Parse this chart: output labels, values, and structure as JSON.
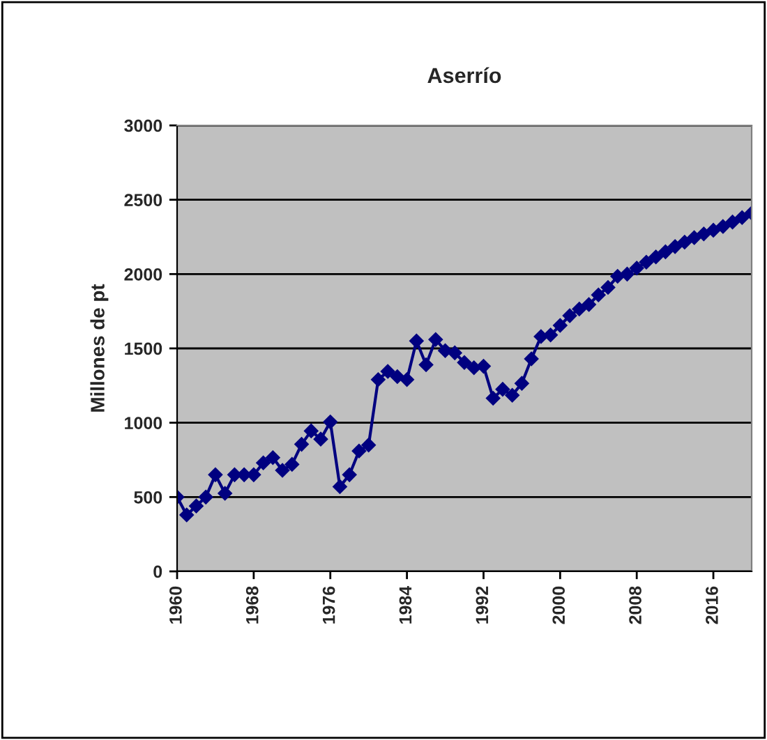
{
  "chart_data": {
    "type": "line",
    "title": "Aserrío",
    "ylabel": "Millones de pt",
    "x": [
      1960,
      1961,
      1962,
      1963,
      1964,
      1965,
      1966,
      1967,
      1968,
      1969,
      1970,
      1971,
      1972,
      1973,
      1974,
      1975,
      1976,
      1977,
      1978,
      1979,
      1980,
      1981,
      1982,
      1983,
      1984,
      1985,
      1986,
      1987,
      1988,
      1989,
      1990,
      1991,
      1992,
      1993,
      1994,
      1995,
      1996,
      1997,
      1998,
      1999,
      2000,
      2001,
      2002,
      2003,
      2004,
      2005,
      2006,
      2007,
      2008,
      2009,
      2010,
      2011,
      2012,
      2013,
      2014,
      2015,
      2016,
      2017,
      2018,
      2019,
      2020
    ],
    "series": [
      {
        "color": "#000080",
        "values": [
          500,
          380,
          440,
          500,
          650,
          525,
          650,
          650,
          650,
          730,
          765,
          680,
          720,
          855,
          945,
          890,
          1005,
          570,
          650,
          810,
          850,
          1290,
          1345,
          1310,
          1290,
          1550,
          1390,
          1560,
          1485,
          1470,
          1405,
          1370,
          1380,
          1165,
          1225,
          1185,
          1265,
          1430,
          1580,
          1590,
          1655,
          1720,
          1765,
          1795,
          1860,
          1910,
          1985,
          2000,
          2040,
          2080,
          2115,
          2150,
          2185,
          2215,
          2245,
          2270,
          2295,
          2320,
          2350,
          2380,
          2410
        ]
      }
    ],
    "xlim": [
      1960,
      2020
    ],
    "xticks": [
      1960,
      1968,
      1976,
      1984,
      1992,
      2000,
      2008,
      2016
    ],
    "ylim": [
      0,
      3000
    ],
    "yticks": [
      0,
      500,
      1000,
      1500,
      2000,
      2500,
      3000
    ],
    "grid": "y",
    "marker": "diamond",
    "line_style": "solid"
  }
}
